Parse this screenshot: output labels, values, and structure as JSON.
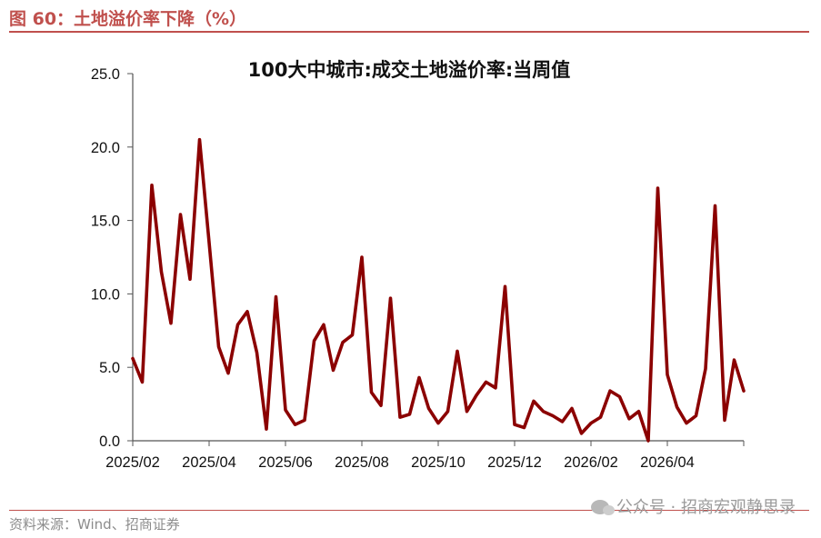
{
  "header": {
    "title": "图 60：土地溢价率下降（%）"
  },
  "footer": {
    "source": "资料来源：Wind、招商证券",
    "watermark": "公众号 · 招商宏观静思录"
  },
  "colors": {
    "accent": "#c0504d",
    "series": "#8b0000"
  },
  "chart_data": {
    "type": "line",
    "title": "100大中城市:成交土地溢价率:当周值",
    "xlabel": "",
    "ylabel": "",
    "ylim": [
      0,
      25
    ],
    "yticks": [
      "0.0",
      "5.0",
      "10.0",
      "15.0",
      "20.0",
      "25.0"
    ],
    "xticks": [
      "2025/02",
      "2025/04",
      "2025/06",
      "2025/08",
      "2025/10",
      "2025/12",
      "2026/02",
      "2026/04"
    ],
    "grid": false,
    "legend": "none",
    "series": [
      {
        "name": "",
        "values": [
          5.6,
          4.0,
          17.4,
          11.5,
          8.0,
          15.4,
          11.0,
          20.5,
          13.5,
          6.4,
          4.6,
          7.9,
          8.8,
          6.0,
          0.8,
          9.8,
          2.1,
          1.1,
          1.4,
          6.8,
          7.9,
          4.8,
          6.7,
          7.2,
          12.5,
          3.3,
          2.4,
          9.7,
          1.6,
          1.8,
          4.3,
          2.2,
          1.2,
          2.0,
          6.1,
          2.0,
          3.1,
          4.0,
          3.6,
          10.5,
          1.1,
          0.9,
          2.7,
          2.0,
          1.7,
          1.3,
          2.2,
          0.5,
          1.2,
          1.6,
          3.4,
          3.0,
          1.5,
          2.0,
          0.0,
          17.2,
          4.5,
          2.3,
          1.2,
          1.7,
          4.9,
          16.0,
          1.4,
          5.5,
          3.4
        ]
      }
    ]
  }
}
